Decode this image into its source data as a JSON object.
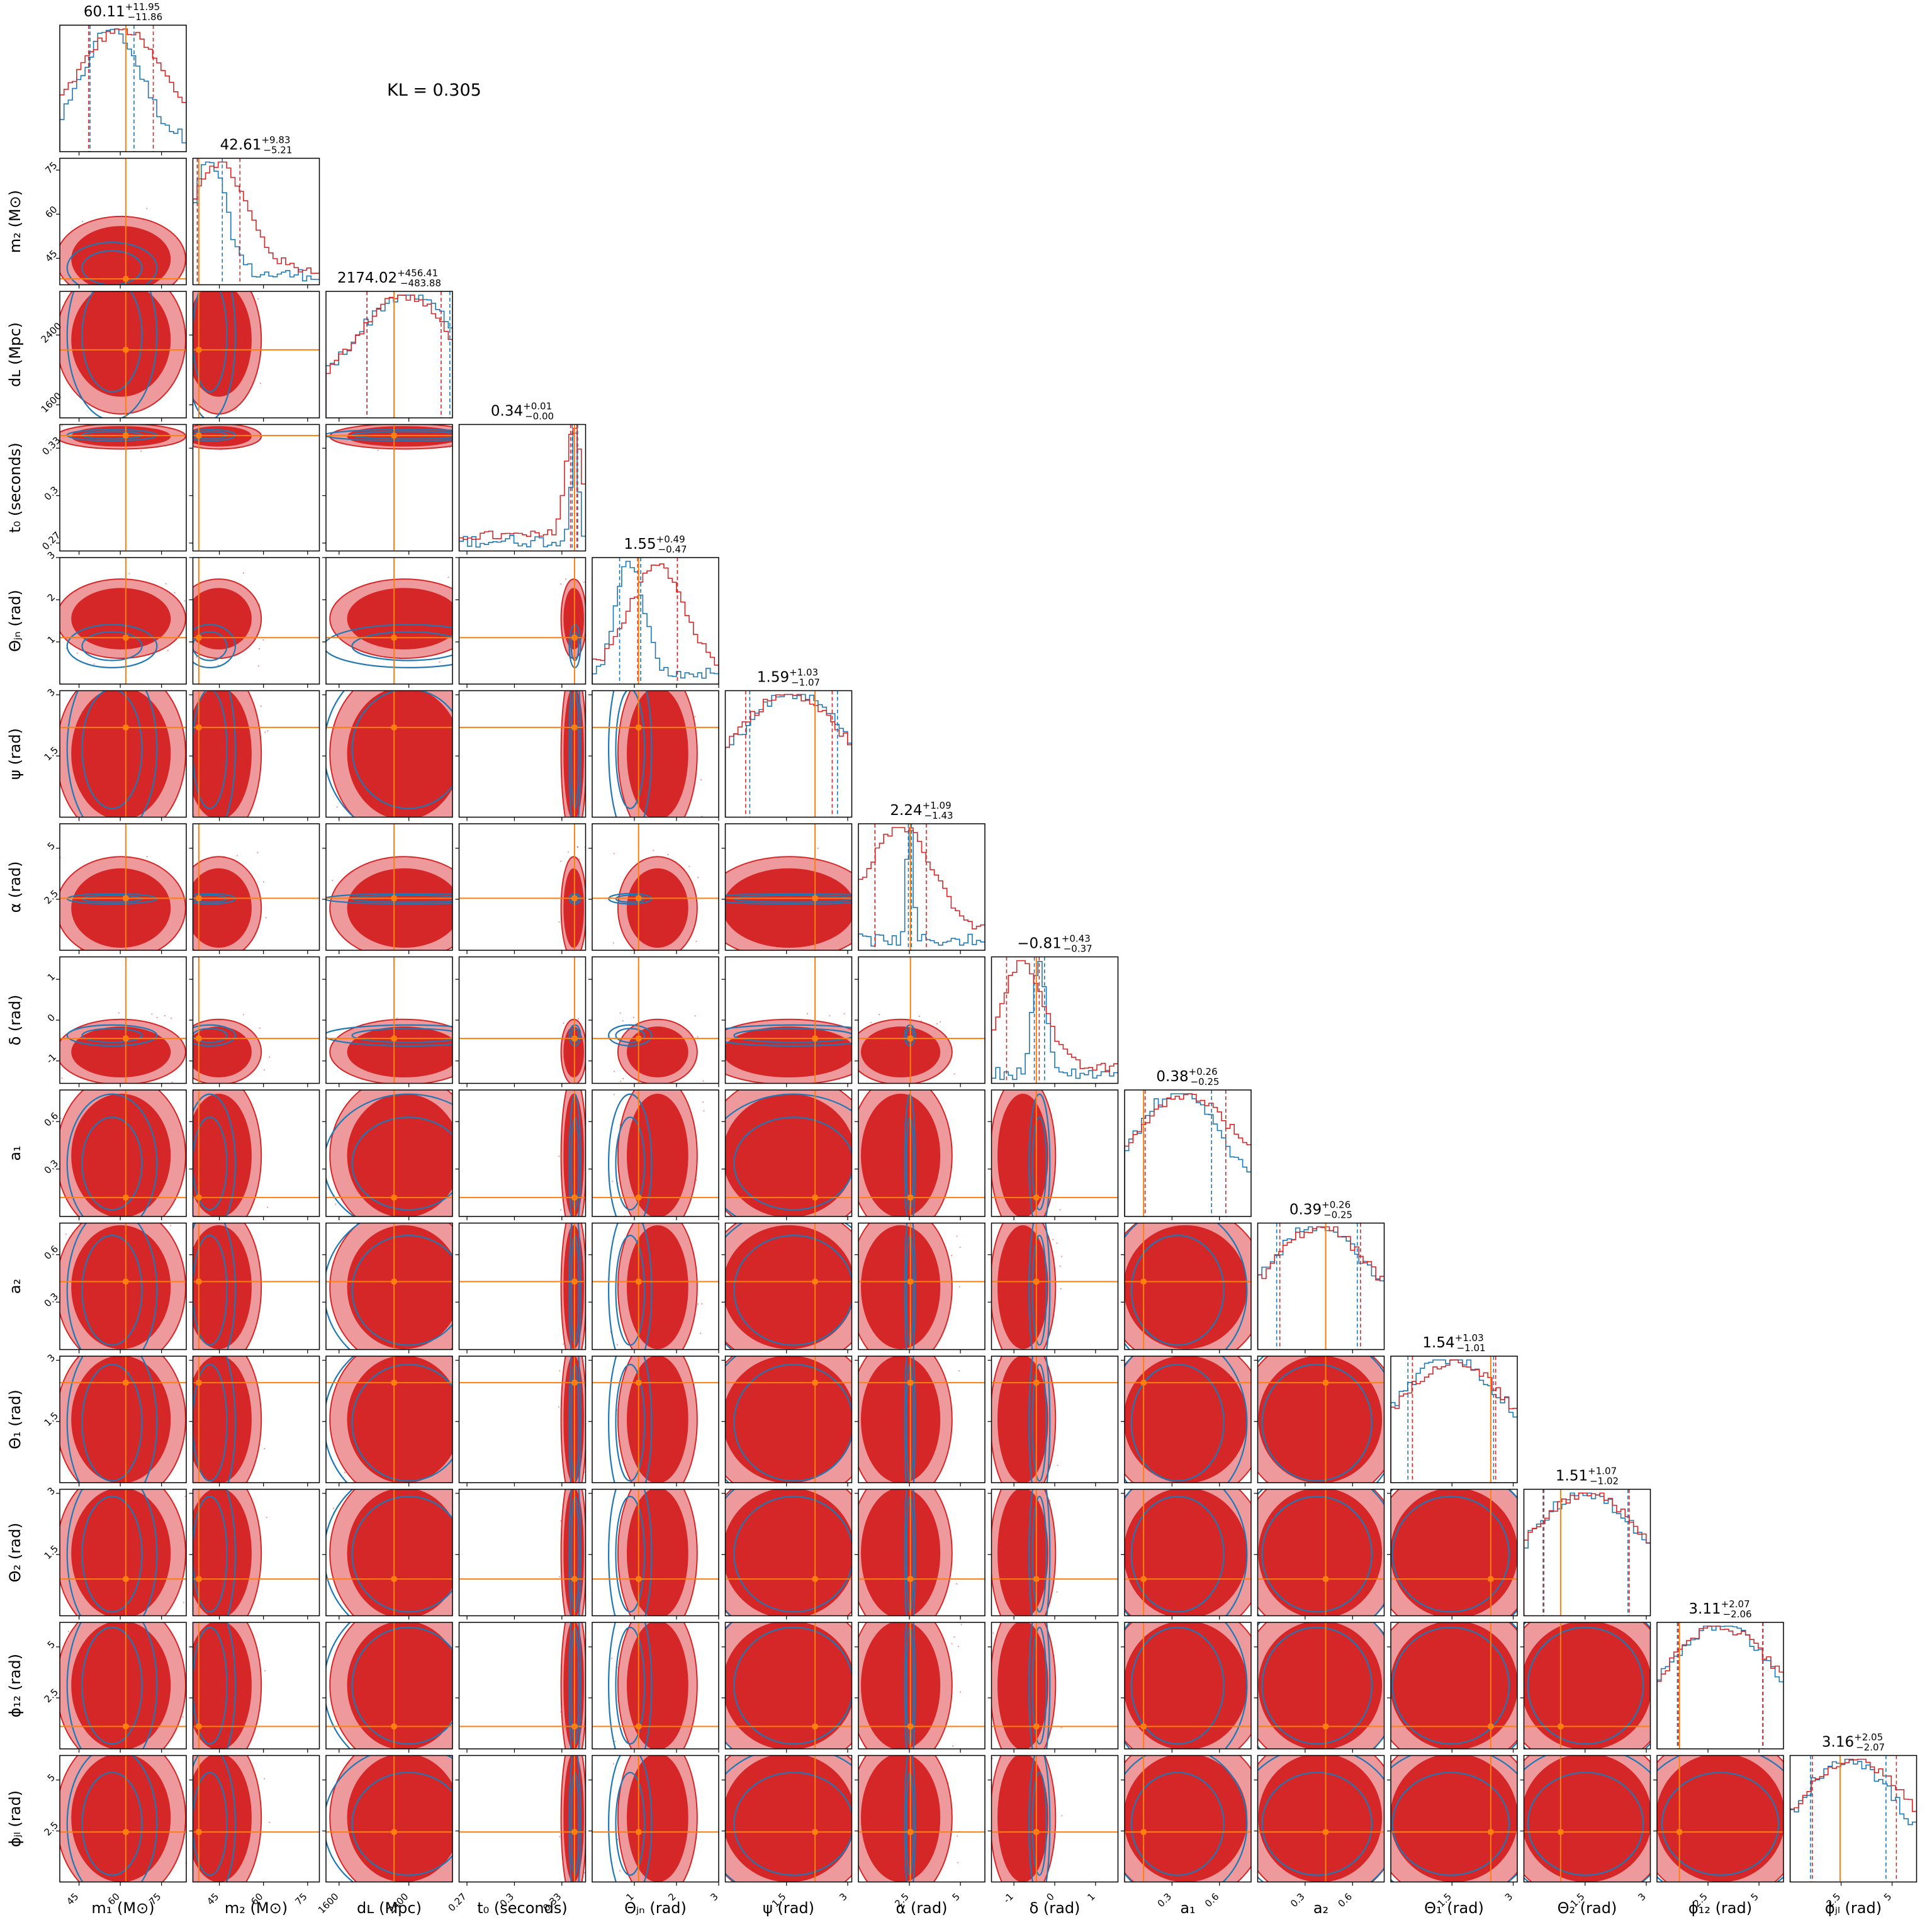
{
  "annotation": "KL = 0.305",
  "colors": {
    "red": "#d62728",
    "red_light": "#ee9a9c",
    "blue": "#1f77b4",
    "truth": "#ff7f0e",
    "frame": "#000000"
  },
  "chart_data": {
    "type": "corner",
    "description_series": [
      {
        "color": "#d62728"
      },
      {
        "color": "#1f77b4"
      }
    ],
    "parameters": [
      {
        "key": "m1",
        "label": "m₁ (M⊙)",
        "range": [
          38,
          84
        ],
        "ticks": [
          45,
          60,
          75
        ],
        "truth": 62,
        "summary": {
          "median": "60.11",
          "plus": "+11.95",
          "minus": "−11.86"
        },
        "quantiles_red": [
          48.5,
          72
        ],
        "quantiles_blue": [
          49,
          65
        ]
      },
      {
        "key": "m2",
        "label": "m₂ (M⊙)",
        "range": [
          36,
          79
        ],
        "ticks": [
          45,
          60,
          75
        ],
        "truth": 38,
        "summary": {
          "median": "42.61",
          "plus": "+9.83",
          "minus": "−5.21"
        },
        "quantiles_red": [
          37.5,
          52
        ],
        "quantiles_blue": [
          37.5,
          46
        ]
      },
      {
        "key": "dL",
        "label": "dʟ (Mpc)",
        "range": [
          1450,
          2900
        ],
        "ticks": [
          1600,
          2400
        ],
        "truth": 2230,
        "summary": {
          "median": "2174.02",
          "plus": "+456.41",
          "minus": "−483.88"
        },
        "quantiles_red": [
          1920,
          2770
        ],
        "quantiles_blue": [
          1920,
          2870
        ]
      },
      {
        "key": "t0",
        "label": "t₀ (seconds)",
        "range": [
          0.265,
          0.345
        ],
        "ticks": [
          0.27,
          0.3,
          0.33
        ],
        "truth": 0.338,
        "summary": {
          "median": "0.34",
          "plus": "+0.01",
          "minus": "−0.00"
        },
        "quantiles_red": [
          0.3355,
          0.3395
        ],
        "quantiles_blue": [
          0.3365,
          0.34
        ]
      },
      {
        "key": "theta_jn",
        "label": "Θⱼₙ (rad)",
        "range": [
          0,
          3.0
        ],
        "ticks": [
          1,
          2,
          3
        ],
        "truth": 1.1,
        "summary": {
          "median": "1.55",
          "plus": "+0.49",
          "minus": "−0.47"
        },
        "quantiles_red": [
          1.08,
          2.02
        ],
        "quantiles_blue": [
          0.65,
          1.15
        ]
      },
      {
        "key": "psi",
        "label": "ψ (rad)",
        "range": [
          0,
          3.1
        ],
        "ticks": [
          1.5,
          3.0
        ],
        "truth": 2.2,
        "summary": {
          "median": "1.59",
          "plus": "+1.03",
          "minus": "−1.07"
        },
        "quantiles_red": [
          0.5,
          2.62
        ],
        "quantiles_blue": [
          0.6,
          2.75
        ]
      },
      {
        "key": "alpha",
        "label": "α (rad)",
        "range": [
          0,
          6.2
        ],
        "ticks": [
          2.5,
          5.0
        ],
        "truth": 2.55,
        "summary": {
          "median": "2.24",
          "plus": "+1.09",
          "minus": "−1.43"
        },
        "quantiles_red": [
          0.81,
          3.33
        ],
        "quantiles_blue": [
          2.45,
          2.6
        ]
      },
      {
        "key": "delta",
        "label": "δ (rad)",
        "range": [
          -1.55,
          1.55
        ],
        "ticks": [
          -1,
          0,
          1
        ],
        "truth": -0.45,
        "summary": {
          "median": "−0.81",
          "plus": "+0.43",
          "minus": "−0.37"
        },
        "quantiles_red": [
          -1.18,
          -0.38
        ],
        "quantiles_blue": [
          -0.5,
          -0.25
        ]
      },
      {
        "key": "a1",
        "label": "a₁",
        "range": [
          0,
          0.8
        ],
        "ticks": [
          0.3,
          0.6
        ],
        "truth": 0.12,
        "summary": {
          "median": "0.38",
          "plus": "+0.26",
          "minus": "−0.25"
        },
        "quantiles_red": [
          0.13,
          0.64
        ],
        "quantiles_blue": [
          0.12,
          0.55
        ]
      },
      {
        "key": "a2",
        "label": "a₂",
        "range": [
          0,
          0.8
        ],
        "ticks": [
          0.3,
          0.6
        ],
        "truth": 0.43,
        "summary": {
          "median": "0.39",
          "plus": "+0.26",
          "minus": "−0.25"
        },
        "quantiles_red": [
          0.14,
          0.65
        ],
        "quantiles_blue": [
          0.12,
          0.63
        ]
      },
      {
        "key": "theta1",
        "label": "Θ₁ (rad)",
        "range": [
          0,
          3.1
        ],
        "ticks": [
          1.5,
          3.0
        ],
        "truth": 2.45,
        "summary": {
          "median": "1.54",
          "plus": "+1.03",
          "minus": "−1.01"
        },
        "quantiles_red": [
          0.53,
          2.57
        ],
        "quantiles_blue": [
          0.42,
          2.52
        ]
      },
      {
        "key": "theta2",
        "label": "Θ₂ (rad)",
        "range": [
          0,
          3.1
        ],
        "ticks": [
          1.5,
          3.0
        ],
        "truth": 0.9,
        "summary": {
          "median": "1.51",
          "plus": "+1.07",
          "minus": "−1.02"
        },
        "quantiles_red": [
          0.49,
          2.58
        ],
        "quantiles_blue": [
          0.47,
          2.55
        ]
      },
      {
        "key": "phi12",
        "label": "ϕ₁₂ (rad)",
        "range": [
          0,
          6.2
        ],
        "ticks": [
          2.5,
          5.0
        ],
        "truth": 1.1,
        "summary": {
          "median": "3.11",
          "plus": "+2.07",
          "minus": "−2.06"
        },
        "quantiles_red": [
          1.05,
          5.18
        ],
        "quantiles_blue": [
          1.0,
          5.2
        ]
      },
      {
        "key": "phi_jl",
        "label": "ϕⱼₗ (rad)",
        "range": [
          0,
          6.2
        ],
        "ticks": [
          2.5,
          5.0
        ],
        "truth": 2.45,
        "summary": {
          "median": "3.16",
          "plus": "+2.05",
          "minus": "−2.07"
        },
        "quantiles_red": [
          1.09,
          5.21
        ],
        "quantiles_blue": [
          1.0,
          4.7
        ]
      }
    ]
  }
}
